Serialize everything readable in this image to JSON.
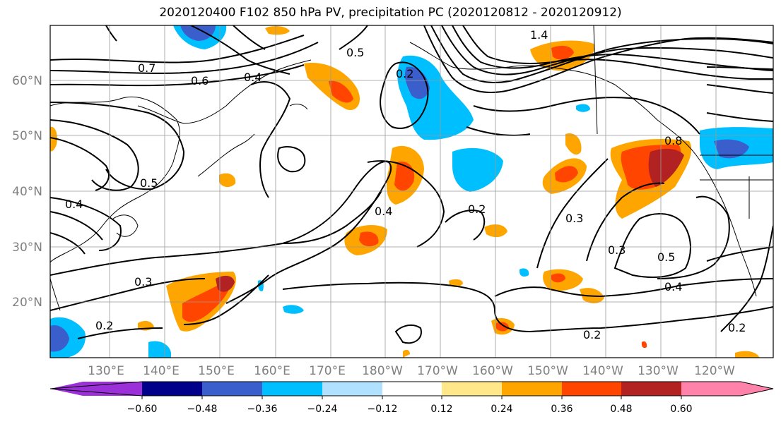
{
  "title": "2020120400 F102 850 hPa PV, precipitation PC (2020120812 - 2020120912)",
  "map": {
    "lat_labels": [
      "60°N",
      "50°N",
      "40°N",
      "30°N",
      "20°N"
    ],
    "lon_labels": [
      "130°E",
      "140°E",
      "150°E",
      "160°E",
      "170°E",
      "180°W",
      "170°W",
      "160°W",
      "150°W",
      "140°W",
      "130°W",
      "120°W"
    ],
    "contour_labels": [
      "0.7",
      "0.6",
      "0.4",
      "0.5",
      "0.2",
      "1.4",
      "0.8",
      "0.4",
      "0.3",
      "0.2",
      "0.5",
      "0.3",
      "0.4",
      "0.3",
      "0.2",
      "0.2",
      "0.2",
      "0.4",
      "0.5"
    ]
  },
  "colorbar": {
    "colors": [
      "#9b30d9",
      "#00008b",
      "#3a5fcd",
      "#00bfff",
      "#b0e2ff",
      "#ffffff",
      "#ffe78a",
      "#ffa500",
      "#ff4500",
      "#b22222",
      "#ff82ab"
    ],
    "tick_labels": [
      "−0.60",
      "−0.48",
      "−0.36",
      "−0.24",
      "−0.12",
      "0.12",
      "0.24",
      "0.36",
      "0.48",
      "0.60"
    ]
  }
}
